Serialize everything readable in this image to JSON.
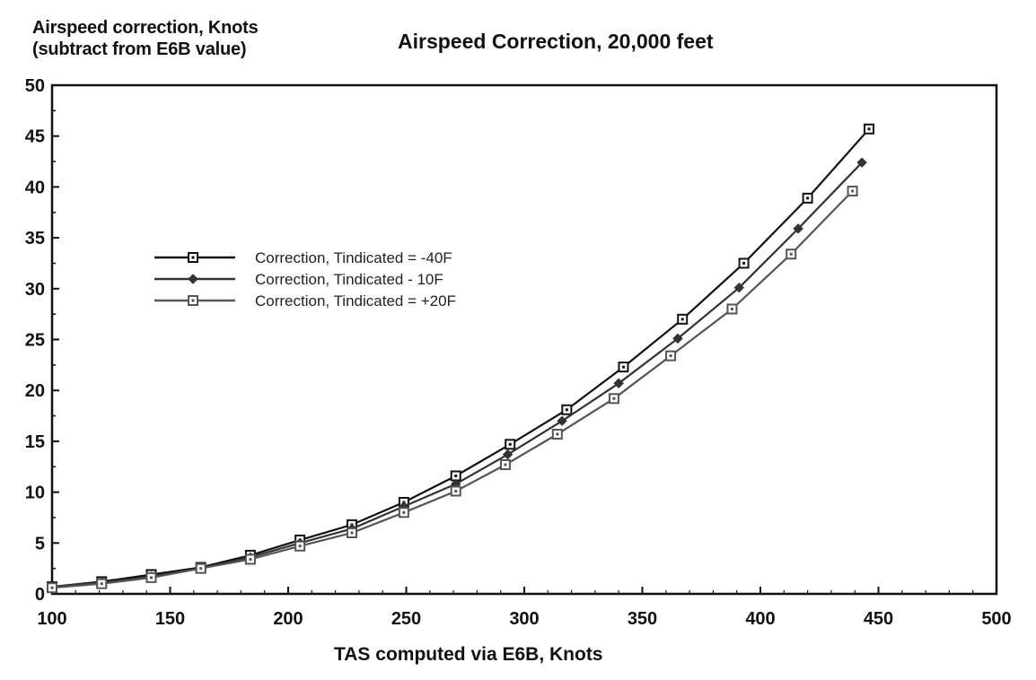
{
  "chart_data": {
    "type": "line",
    "title": "Airspeed Correction, 20,000 feet",
    "ylabel_lines": [
      "Airspeed correction, Knots",
      "(subtract from E6B value)"
    ],
    "xlabel": "TAS computed via E6B, Knots",
    "xlim": [
      100,
      500
    ],
    "ylim": [
      0,
      50
    ],
    "xticks": [
      100,
      150,
      200,
      250,
      300,
      350,
      400,
      450,
      500
    ],
    "yticks": [
      0,
      5,
      10,
      15,
      20,
      25,
      30,
      35,
      40,
      45,
      50
    ],
    "legend_position": "upper-left",
    "series": [
      {
        "name": "Correction, Tindicated = -40F",
        "marker": "square",
        "color": "#111111",
        "x": [
          100,
          121,
          142,
          163,
          184,
          205,
          227,
          249,
          271,
          294,
          318,
          342,
          367,
          393,
          420,
          446
        ],
        "y": [
          0.7,
          1.2,
          1.9,
          2.6,
          3.8,
          5.3,
          6.8,
          9.0,
          11.6,
          14.7,
          18.1,
          22.3,
          27.0,
          32.5,
          38.9,
          45.7
        ]
      },
      {
        "name": "Correction, Tindicated - 10F",
        "marker": "diamond",
        "color": "#333333",
        "x": [
          100,
          121,
          142,
          163,
          184,
          205,
          227,
          249,
          271,
          293,
          316,
          340,
          365,
          391,
          416,
          443
        ],
        "y": [
          0.7,
          1.1,
          1.7,
          2.5,
          3.6,
          5.0,
          6.4,
          8.6,
          10.8,
          13.7,
          17.0,
          20.7,
          25.1,
          30.1,
          35.9,
          42.4
        ]
      },
      {
        "name": "Correction, Tindicated = +20F",
        "marker": "square",
        "color": "#555555",
        "x": [
          100,
          121,
          142,
          163,
          184,
          205,
          227,
          249,
          271,
          292,
          314,
          338,
          362,
          388,
          413,
          439
        ],
        "y": [
          0.6,
          1.0,
          1.6,
          2.5,
          3.4,
          4.7,
          6.0,
          8.0,
          10.1,
          12.7,
          15.7,
          19.2,
          23.4,
          28.0,
          33.4,
          39.6
        ]
      }
    ]
  }
}
